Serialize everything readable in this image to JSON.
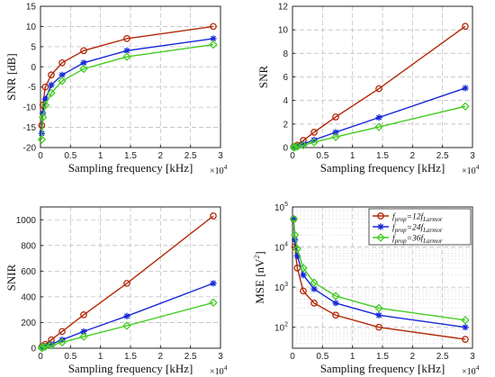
{
  "colors": {
    "prop12": "#b22a0a",
    "prop24": "#1428d8",
    "prop36": "#44cc22",
    "grid": "#bfbfbf"
  },
  "markers": [
    "circle",
    "star",
    "diamond"
  ],
  "chart_data": [
    {
      "type": "line",
      "panel": "top-left",
      "xlabel": "Sampling frequency [kHz]",
      "ylabel": "SNR [dB]",
      "x_multiplier_label": "×10",
      "x_multiplier_exp": "4",
      "xlim": [
        0,
        3
      ],
      "ylim": [
        -20,
        15
      ],
      "yscale": "linear",
      "xticks": [
        0,
        0.5,
        1,
        1.5,
        2,
        2.5,
        3
      ],
      "xtick_labels": [
        "0",
        "0.5",
        "1",
        "1.5",
        "2",
        "2.5",
        "3"
      ],
      "yticks": [
        -20,
        -15,
        -10,
        -5,
        0,
        5,
        10,
        15
      ],
      "ytick_labels": [
        "-20",
        "-15",
        "-10",
        "-5",
        "0",
        "5",
        "10",
        "15"
      ],
      "grid": true,
      "x": [
        0.02,
        0.04,
        0.08,
        0.18,
        0.36,
        0.72,
        1.44,
        2.88
      ],
      "series": [
        {
          "values": [
            -14.5,
            -9.5,
            -5.0,
            -2.0,
            1.0,
            4.0,
            7.0,
            10.0
          ]
        },
        {
          "values": [
            -16.5,
            -11.5,
            -8.0,
            -4.5,
            -2.0,
            1.0,
            4.0,
            7.0
          ]
        },
        {
          "values": [
            -18.0,
            -12.5,
            -9.5,
            -6.5,
            -3.5,
            -0.5,
            2.5,
            5.5
          ]
        }
      ]
    },
    {
      "type": "line",
      "panel": "top-right",
      "xlabel": "Sampling frequency [kHz]",
      "ylabel": "SNR",
      "x_multiplier_label": "×10",
      "x_multiplier_exp": "4",
      "xlim": [
        0,
        3
      ],
      "ylim": [
        0,
        12
      ],
      "yscale": "linear",
      "xticks": [
        0,
        0.5,
        1,
        1.5,
        2,
        2.5,
        3
      ],
      "xtick_labels": [
        "0",
        "0.5",
        "1",
        "1.5",
        "2",
        "2.5",
        "3"
      ],
      "yticks": [
        0,
        2,
        4,
        6,
        8,
        10,
        12
      ],
      "ytick_labels": [
        "0",
        "2",
        "4",
        "6",
        "8",
        "10",
        "12"
      ],
      "grid": true,
      "x": [
        0.02,
        0.04,
        0.08,
        0.18,
        0.36,
        0.72,
        1.44,
        2.88
      ],
      "series": [
        {
          "values": [
            0.05,
            0.1,
            0.2,
            0.6,
            1.3,
            2.6,
            5.0,
            10.3
          ]
        },
        {
          "values": [
            0.03,
            0.06,
            0.12,
            0.3,
            0.65,
            1.3,
            2.55,
            5.05
          ]
        },
        {
          "values": [
            0.02,
            0.04,
            0.08,
            0.2,
            0.45,
            0.9,
            1.75,
            3.5
          ]
        }
      ]
    },
    {
      "type": "line",
      "panel": "bottom-left",
      "xlabel": "Sampling frequency [kHz]",
      "ylabel": "SNIR",
      "x_multiplier_label": "×10",
      "x_multiplier_exp": "4",
      "xlim": [
        0,
        3
      ],
      "ylim": [
        0,
        1100
      ],
      "yscale": "linear",
      "xticks": [
        0,
        0.5,
        1,
        1.5,
        2,
        2.5,
        3
      ],
      "xtick_labels": [
        "0",
        "0.5",
        "1",
        "1.5",
        "2",
        "2.5",
        "3"
      ],
      "yticks": [
        0,
        200,
        400,
        600,
        800,
        1000
      ],
      "ytick_labels": [
        "0",
        "200",
        "400",
        "600",
        "800",
        "1000"
      ],
      "grid": true,
      "x": [
        0.02,
        0.04,
        0.08,
        0.18,
        0.36,
        0.72,
        1.44,
        2.88
      ],
      "series": [
        {
          "values": [
            8,
            15,
            30,
            65,
            130,
            260,
            505,
            1030
          ]
        },
        {
          "values": [
            4,
            8,
            16,
            32,
            65,
            130,
            250,
            505
          ]
        },
        {
          "values": [
            3,
            6,
            12,
            22,
            45,
            90,
            175,
            355
          ]
        }
      ]
    },
    {
      "type": "line",
      "panel": "bottom-right",
      "xlabel": "Sampling frequency [kHz]",
      "ylabel": "MSE [nV",
      "ylabel_sup": "2",
      "ylabel_end": "]",
      "x_multiplier_label": "×10",
      "x_multiplier_exp": "4",
      "xlim": [
        0,
        3
      ],
      "ylim": [
        30,
        100000
      ],
      "yscale": "log",
      "xticks": [
        0,
        0.5,
        1,
        1.5,
        2,
        2.5,
        3
      ],
      "xtick_labels": [
        "0",
        "0.5",
        "1",
        "1.5",
        "2",
        "2.5",
        "3"
      ],
      "yticks": [
        100,
        1000,
        10000,
        100000
      ],
      "ytick_base": "10",
      "ytick_exps": [
        "2",
        "3",
        "4",
        "5"
      ],
      "grid": true,
      "legend_position": "top-right",
      "x": [
        0.02,
        0.04,
        0.08,
        0.18,
        0.36,
        0.72,
        1.44,
        2.88
      ],
      "series": [
        {
          "values": [
            50000,
            10000,
            3000,
            800,
            400,
            200,
            100,
            50
          ]
        },
        {
          "values": [
            50000,
            15000,
            6000,
            2000,
            900,
            400,
            200,
            100
          ]
        },
        {
          "values": [
            50000,
            20000,
            9000,
            3000,
            1300,
            600,
            300,
            150
          ]
        }
      ],
      "legend": [
        {
          "f": "f",
          "sub1": "prop",
          "eq": "=12f",
          "sub2": "Larmor"
        },
        {
          "f": "f",
          "sub1": "prop",
          "eq": "=24f",
          "sub2": "Larmor"
        },
        {
          "f": "f",
          "sub1": "prop",
          "eq": "=36f",
          "sub2": "Larmor"
        }
      ]
    }
  ]
}
